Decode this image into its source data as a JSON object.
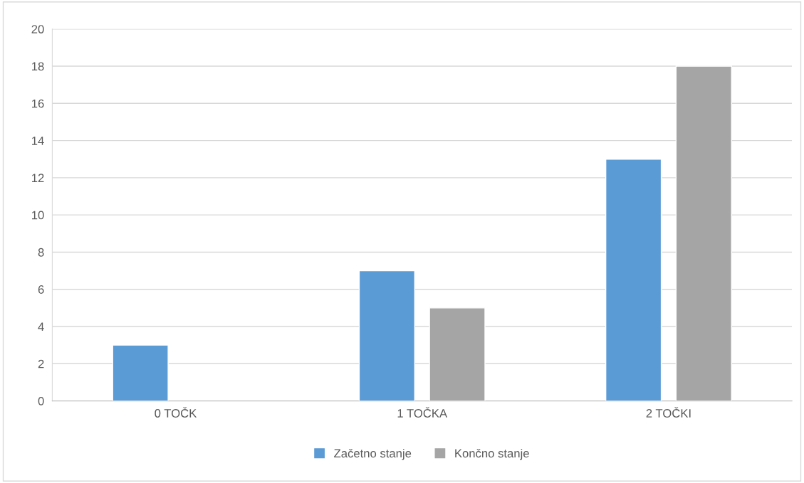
{
  "chart_data": {
    "type": "bar",
    "categories": [
      "0 TOČK",
      "1 TOČKA",
      "2 TOČKI"
    ],
    "series": [
      {
        "name": "Začetno stanje",
        "color": "#5b9bd5",
        "values": [
          3,
          7,
          13
        ]
      },
      {
        "name": "Končno stanje",
        "color": "#a5a5a5",
        "values": [
          null,
          5,
          18
        ]
      }
    ],
    "ylim": [
      0,
      20
    ],
    "yticks": [
      0,
      2,
      4,
      6,
      8,
      10,
      12,
      14,
      16,
      18,
      20
    ],
    "grid": "y",
    "legend": "bottom"
  }
}
